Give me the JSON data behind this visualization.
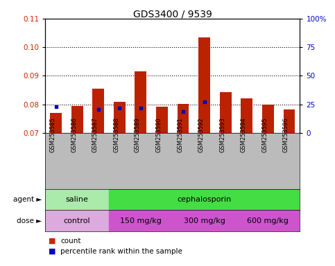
{
  "title": "GDS3400 / 9539",
  "samples": [
    "GSM253585",
    "GSM253586",
    "GSM253587",
    "GSM253588",
    "GSM253589",
    "GSM253590",
    "GSM253591",
    "GSM253592",
    "GSM253593",
    "GSM253594",
    "GSM253595",
    "GSM253596"
  ],
  "bar_tops": [
    0.077,
    0.0795,
    0.0855,
    0.081,
    0.0915,
    0.0793,
    0.0802,
    0.1035,
    0.0843,
    0.082,
    0.08,
    0.0783
  ],
  "bar_bottom": 0.07,
  "percentile_values": [
    0.0793,
    null,
    0.0782,
    0.0788,
    0.0788,
    null,
    0.0775,
    0.0808,
    null,
    null,
    null,
    null
  ],
  "ylim_left": [
    0.07,
    0.11
  ],
  "ylim_right": [
    0,
    100
  ],
  "yticks_left": [
    0.07,
    0.08,
    0.09,
    0.1,
    0.11
  ],
  "yticks_right": [
    0,
    25,
    50,
    75,
    100
  ],
  "bar_color": "#bb2200",
  "percentile_color": "#0000bb",
  "background_color": "#ffffff",
  "agent_groups": [
    {
      "label": "saline",
      "start": 0,
      "end": 3,
      "color": "#aaeaaa"
    },
    {
      "label": "cephalosporin",
      "start": 3,
      "end": 12,
      "color": "#44dd44"
    }
  ],
  "dose_groups": [
    {
      "label": "control",
      "start": 0,
      "end": 3,
      "color": "#ddaadd"
    },
    {
      "label": "150 mg/kg",
      "start": 3,
      "end": 6,
      "color": "#cc55cc"
    },
    {
      "label": "300 mg/kg",
      "start": 6,
      "end": 9,
      "color": "#cc55cc"
    },
    {
      "label": "600 mg/kg",
      "start": 9,
      "end": 12,
      "color": "#cc55cc"
    }
  ],
  "ylabel_left_color": "#cc2200",
  "ylabel_right_color": "#0000cc",
  "tick_bg_color": "#bbbbbb",
  "legend_count_color": "#cc2200",
  "legend_percentile_color": "#0000cc",
  "gridline_yticks": [
    0.08,
    0.09,
    0.1
  ]
}
